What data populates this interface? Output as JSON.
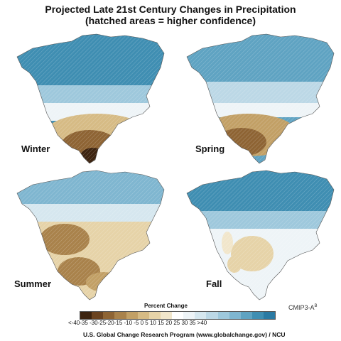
{
  "title_line1": "Projected Late 21st Century Changes in Precipitation",
  "title_line2": "(hatched areas = higher confidence)",
  "panels": [
    {
      "season": "Winter",
      "pattern": "dry-south"
    },
    {
      "season": "Spring",
      "pattern": "dry-southwest"
    },
    {
      "season": "Summer",
      "pattern": "dry-west-center"
    },
    {
      "season": "Fall",
      "pattern": "mixed-center"
    }
  ],
  "legend": {
    "title": "Percent Change",
    "tick_labels": "<-40-35 -30-25-20-15 -10 -5    0   5  10 15  20 25  30 35 >40",
    "colors": [
      "#3d2410",
      "#6b4421",
      "#8e6434",
      "#a9824b",
      "#c2a066",
      "#d6bb85",
      "#e6d3a8",
      "#f1e6cb",
      "#ffffff",
      "#eef4f7",
      "#d6e7ef",
      "#bcd8e6",
      "#9ec8dc",
      "#7fb6d0",
      "#5fa3c2",
      "#3f8eb2",
      "#2a7aa3"
    ]
  },
  "model_label": "CMIP3-A",
  "model_superscript": "B",
  "footer": "U.S. Global Change Research Program (www.globalchange.gov) / NCU"
}
